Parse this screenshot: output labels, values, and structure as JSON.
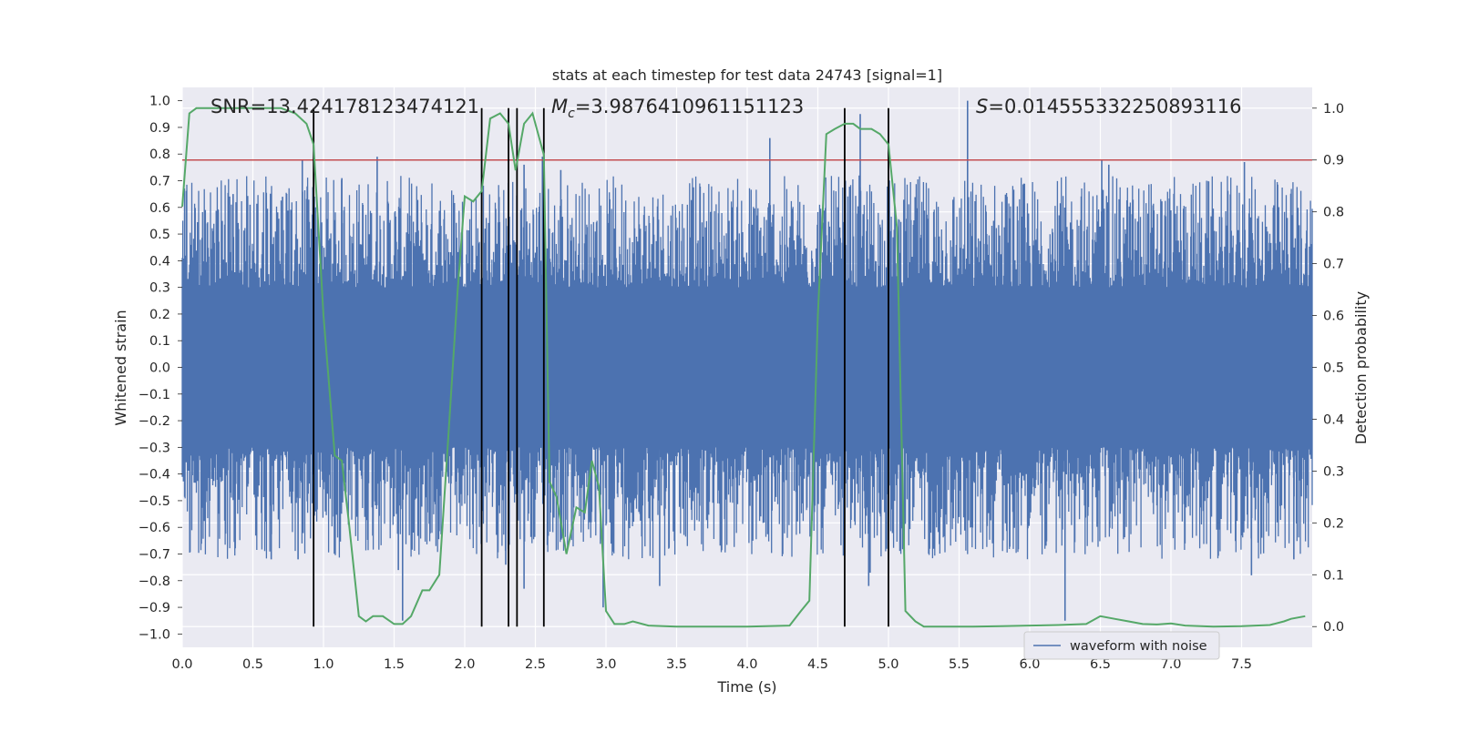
{
  "chart_data": {
    "type": "line",
    "title": "stats at each timestep for test data 24743 [signal=1]",
    "xlabel": "Time (s)",
    "ylabel": "Whitened strain",
    "ylabel_right": "Detection probability",
    "xlim": [
      0.0,
      8.0
    ],
    "ylim": [
      -1.05,
      1.05
    ],
    "ylim_right": [
      -0.04,
      1.04
    ],
    "xticks": [
      "0.0",
      "0.5",
      "1.0",
      "1.5",
      "2.0",
      "2.5",
      "3.0",
      "3.5",
      "4.0",
      "4.5",
      "5.0",
      "5.5",
      "6.0",
      "6.5",
      "7.0",
      "7.5"
    ],
    "yticks": [
      "1.0",
      "0.9",
      "0.8",
      "0.7",
      "0.6",
      "0.5",
      "0.4",
      "0.3",
      "0.2",
      "0.1",
      "0.0",
      "−0.1",
      "−0.2",
      "−0.3",
      "−0.4",
      "−0.5",
      "−0.6",
      "−0.7",
      "−0.8",
      "−0.9",
      "−1.0"
    ],
    "yticks_right": [
      "1.0",
      "0.9",
      "0.8",
      "0.7",
      "0.6",
      "0.5",
      "0.4",
      "0.3",
      "0.2",
      "0.1",
      "0.0"
    ],
    "grid": true,
    "legend": {
      "placement": "lower-right",
      "entries": [
        {
          "name": "waveform with noise",
          "color": "#4c72b0"
        }
      ]
    },
    "annotations": {
      "snr": "SNR=13.424178123474121",
      "mc_symbol": "M",
      "mc_sub": "c",
      "mc_value": "=3.9876410961151123",
      "s_symbol": "S",
      "s_value": "=0.014555332250893116"
    },
    "threshold": {
      "value": 0.9,
      "color": "#c44e52"
    },
    "event_lines": [
      0.93,
      2.12,
      2.31,
      2.37,
      2.56,
      4.69,
      5.0
    ],
    "strain_noise": {
      "color": "#4c72b0",
      "core_abs": 0.3,
      "envelope": [
        -0.5,
        0.5
      ]
    },
    "strain_peaks": [
      {
        "x": 0.36,
        "y": 0.65
      },
      {
        "x": 0.48,
        "y": 0.61
      },
      {
        "x": 0.71,
        "y": 0.64
      },
      {
        "x": 0.85,
        "y": 0.78
      },
      {
        "x": 1.13,
        "y": 0.71
      },
      {
        "x": 1.38,
        "y": 0.79
      },
      {
        "x": 2.12,
        "y": 0.81
      },
      {
        "x": 2.42,
        "y": 0.76
      },
      {
        "x": 2.55,
        "y": 0.79
      },
      {
        "x": 2.68,
        "y": 0.74
      },
      {
        "x": 4.16,
        "y": 0.86
      },
      {
        "x": 4.8,
        "y": 0.95
      },
      {
        "x": 5.56,
        "y": 1.0
      },
      {
        "x": 6.51,
        "y": 0.78
      },
      {
        "x": 6.56,
        "y": 0.76
      },
      {
        "x": 7.52,
        "y": 0.77
      },
      {
        "x": 0.63,
        "y": -0.72
      },
      {
        "x": 0.82,
        "y": -0.72
      },
      {
        "x": 1.53,
        "y": -0.76
      },
      {
        "x": 1.56,
        "y": -0.95
      },
      {
        "x": 2.29,
        "y": -0.74
      },
      {
        "x": 2.42,
        "y": -0.83
      },
      {
        "x": 2.98,
        "y": -0.9
      },
      {
        "x": 3.38,
        "y": -0.82
      },
      {
        "x": 4.86,
        "y": -0.82
      },
      {
        "x": 4.87,
        "y": -0.77
      },
      {
        "x": 6.25,
        "y": -0.95
      },
      {
        "x": 7.57,
        "y": -0.78
      },
      {
        "x": 7.87,
        "y": -0.72
      }
    ],
    "series": [
      {
        "name": "",
        "axis": "right",
        "color": "#55a868",
        "x": [
          0.0,
          0.05,
          0.1,
          0.2,
          0.3,
          0.4,
          0.5,
          0.6,
          0.7,
          0.8,
          0.88,
          0.93,
          1.0,
          1.08,
          1.13,
          1.18,
          1.25,
          1.3,
          1.35,
          1.42,
          1.5,
          1.56,
          1.62,
          1.7,
          1.75,
          1.82,
          1.88,
          1.95,
          2.0,
          2.06,
          2.12,
          2.18,
          2.25,
          2.31,
          2.36,
          2.42,
          2.48,
          2.56,
          2.6,
          2.65,
          2.72,
          2.79,
          2.85,
          2.9,
          2.95,
          3.0,
          3.06,
          3.13,
          3.19,
          3.3,
          3.5,
          3.7,
          4.0,
          4.3,
          4.38,
          4.44,
          4.5,
          4.56,
          4.62,
          4.69,
          4.75,
          4.8,
          4.88,
          4.94,
          5.0,
          5.06,
          5.12,
          5.19,
          5.25,
          5.4,
          5.6,
          5.8,
          6.0,
          6.2,
          6.4,
          6.5,
          6.6,
          6.7,
          6.8,
          6.9,
          7.0,
          7.1,
          7.3,
          7.5,
          7.7,
          7.8,
          7.85,
          7.95
        ],
        "y": [
          0.81,
          0.99,
          1.0,
          1.0,
          1.0,
          1.0,
          1.0,
          1.0,
          1.0,
          0.99,
          0.97,
          0.93,
          0.6,
          0.33,
          0.32,
          0.2,
          0.02,
          0.01,
          0.02,
          0.02,
          0.005,
          0.005,
          0.02,
          0.07,
          0.07,
          0.1,
          0.35,
          0.65,
          0.83,
          0.82,
          0.84,
          0.98,
          0.99,
          0.97,
          0.88,
          0.97,
          0.99,
          0.91,
          0.28,
          0.25,
          0.14,
          0.23,
          0.22,
          0.32,
          0.27,
          0.03,
          0.005,
          0.005,
          0.01,
          0.002,
          0.0,
          0.0,
          0.0,
          0.002,
          0.03,
          0.05,
          0.6,
          0.95,
          0.96,
          0.97,
          0.97,
          0.96,
          0.96,
          0.95,
          0.93,
          0.77,
          0.03,
          0.01,
          0.0,
          0.0,
          0.0,
          0.001,
          0.002,
          0.003,
          0.005,
          0.02,
          0.015,
          0.01,
          0.005,
          0.004,
          0.006,
          0.002,
          0.0,
          0.001,
          0.003,
          0.01,
          0.015,
          0.02
        ]
      }
    ]
  }
}
